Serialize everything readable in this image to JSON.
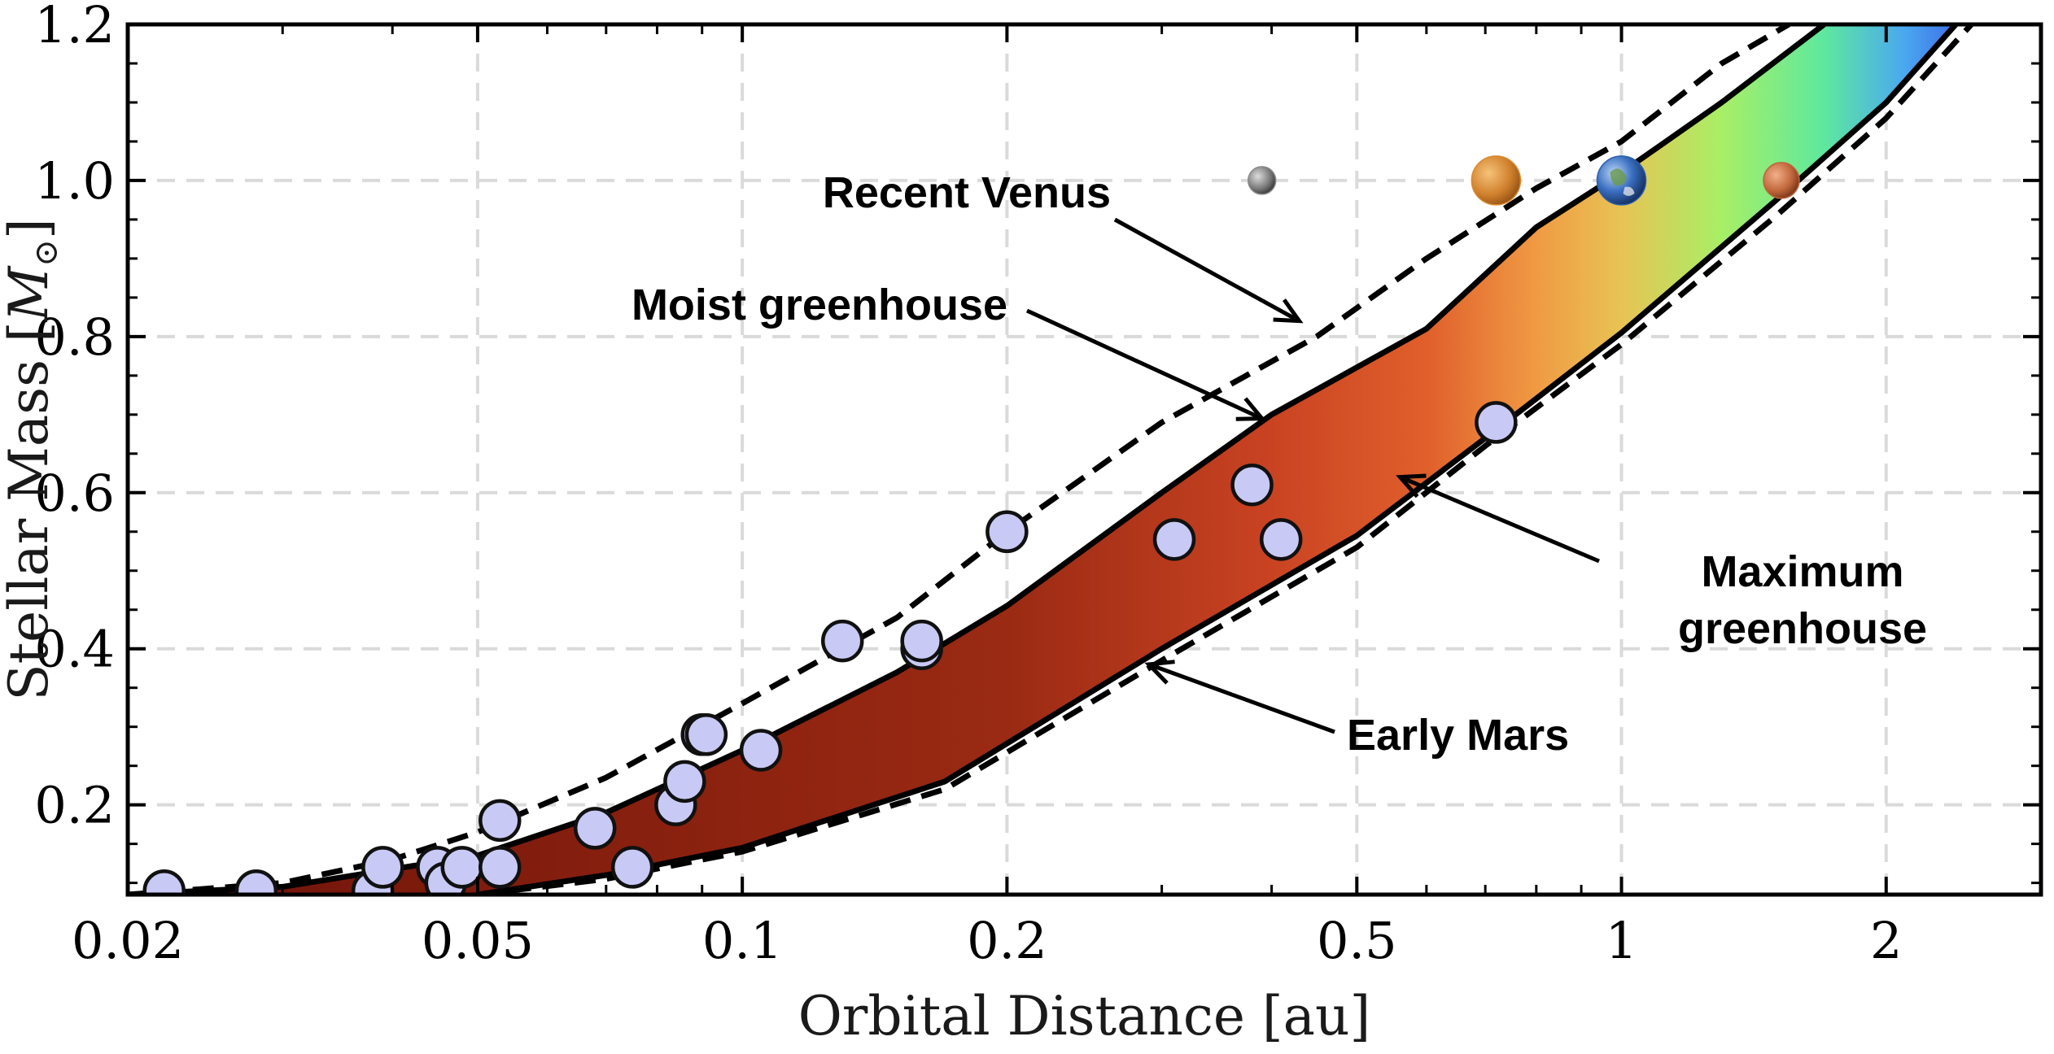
{
  "chart_data": {
    "type": "scatter",
    "title": "",
    "xlabel": "Orbital Distance [au]",
    "ylabel_text": "Stellar Mass [",
    "ylabel_symbol": "M",
    "ylabel_subscript": "⊙",
    "ylabel_close": "]",
    "xscale": "log",
    "xlim": [
      0.02,
      3.0
    ],
    "ylim": [
      0.085,
      1.2
    ],
    "grid": true,
    "x_ticks": [
      {
        "value": 0.02,
        "label": "0.02"
      },
      {
        "value": 0.05,
        "label": "0.05"
      },
      {
        "value": 0.1,
        "label": "0.1"
      },
      {
        "value": 0.2,
        "label": "0.2"
      },
      {
        "value": 0.5,
        "label": "0.5"
      },
      {
        "value": 1,
        "label": "1"
      },
      {
        "value": 2,
        "label": "2"
      }
    ],
    "y_ticks": [
      {
        "value": 0.2,
        "label": "0.2"
      },
      {
        "value": 0.4,
        "label": "0.4"
      },
      {
        "value": 0.6,
        "label": "0.6"
      },
      {
        "value": 0.8,
        "label": "0.8"
      },
      {
        "value": 1.0,
        "label": "1.0"
      },
      {
        "value": 1.2,
        "label": "1.2"
      }
    ],
    "boundaries": [
      {
        "name": "Recent Venus",
        "style": "dashed",
        "points": [
          [
            0.02,
            0.085
          ],
          [
            0.03,
            0.1
          ],
          [
            0.04,
            0.13
          ],
          [
            0.05,
            0.165
          ],
          [
            0.07,
            0.235
          ],
          [
            0.1,
            0.33
          ],
          [
            0.15,
            0.44
          ],
          [
            0.2,
            0.55
          ],
          [
            0.3,
            0.69
          ],
          [
            0.45,
            0.8
          ],
          [
            0.6,
            0.9
          ],
          [
            0.8,
            0.99
          ],
          [
            1.0,
            1.05
          ],
          [
            1.3,
            1.15
          ],
          [
            1.55,
            1.2
          ]
        ]
      },
      {
        "name": "Moist greenhouse",
        "style": "solid",
        "points": [
          [
            0.02,
            0.085
          ],
          [
            0.03,
            0.095
          ],
          [
            0.05,
            0.135
          ],
          [
            0.07,
            0.19
          ],
          [
            0.1,
            0.27
          ],
          [
            0.15,
            0.37
          ],
          [
            0.2,
            0.455
          ],
          [
            0.3,
            0.6
          ],
          [
            0.4,
            0.7
          ],
          [
            0.6,
            0.81
          ],
          [
            0.8,
            0.94
          ],
          [
            1.0,
            1.01
          ],
          [
            1.3,
            1.1
          ],
          [
            1.7,
            1.2
          ]
        ]
      },
      {
        "name": "Maximum greenhouse",
        "style": "solid",
        "points": [
          [
            0.05,
            0.085
          ],
          [
            0.07,
            0.11
          ],
          [
            0.1,
            0.145
          ],
          [
            0.17,
            0.23
          ],
          [
            0.3,
            0.4
          ],
          [
            0.5,
            0.545
          ],
          [
            0.7,
            0.67
          ],
          [
            1.0,
            0.805
          ],
          [
            1.5,
            0.975
          ],
          [
            2.0,
            1.1
          ],
          [
            2.4,
            1.2
          ]
        ]
      },
      {
        "name": "Early Mars",
        "style": "dashed",
        "points": [
          [
            0.05,
            0.085
          ],
          [
            0.07,
            0.105
          ],
          [
            0.1,
            0.14
          ],
          [
            0.17,
            0.22
          ],
          [
            0.3,
            0.385
          ],
          [
            0.5,
            0.53
          ],
          [
            0.7,
            0.66
          ],
          [
            1.0,
            0.79
          ],
          [
            1.5,
            0.955
          ],
          [
            2.0,
            1.08
          ],
          [
            2.5,
            1.2
          ]
        ]
      }
    ],
    "band_gradient_stops": [
      {
        "x": 0.02,
        "color": "#6e1209"
      },
      {
        "x": 0.2,
        "color": "#9a2a13"
      },
      {
        "x": 0.4,
        "color": "#c94322"
      },
      {
        "x": 0.6,
        "color": "#e05f2b"
      },
      {
        "x": 0.8,
        "color": "#f09a43"
      },
      {
        "x": 1.0,
        "color": "#e8c354"
      },
      {
        "x": 1.3,
        "color": "#a8ef66"
      },
      {
        "x": 1.7,
        "color": "#5ee89e"
      },
      {
        "x": 2.1,
        "color": "#4aa8f0"
      },
      {
        "x": 2.4,
        "color": "#3f6fe8"
      }
    ],
    "exoplanets": [
      {
        "x": 0.022,
        "y": 0.09
      },
      {
        "x": 0.028,
        "y": 0.09
      },
      {
        "x": 0.038,
        "y": 0.09
      },
      {
        "x": 0.039,
        "y": 0.12
      },
      {
        "x": 0.045,
        "y": 0.12
      },
      {
        "x": 0.046,
        "y": 0.1
      },
      {
        "x": 0.048,
        "y": 0.12
      },
      {
        "x": 0.053,
        "y": 0.12
      },
      {
        "x": 0.053,
        "y": 0.18
      },
      {
        "x": 0.068,
        "y": 0.17
      },
      {
        "x": 0.075,
        "y": 0.12
      },
      {
        "x": 0.084,
        "y": 0.2
      },
      {
        "x": 0.086,
        "y": 0.23
      },
      {
        "x": 0.09,
        "y": 0.29
      },
      {
        "x": 0.091,
        "y": 0.29
      },
      {
        "x": 0.105,
        "y": 0.27
      },
      {
        "x": 0.13,
        "y": 0.41
      },
      {
        "x": 0.16,
        "y": 0.4
      },
      {
        "x": 0.16,
        "y": 0.41
      },
      {
        "x": 0.2,
        "y": 0.55
      },
      {
        "x": 0.31,
        "y": 0.54
      },
      {
        "x": 0.38,
        "y": 0.61
      },
      {
        "x": 0.41,
        "y": 0.54
      },
      {
        "x": 0.72,
        "y": 0.69
      }
    ],
    "marker_fill": "#c9c9f5",
    "solar_system_planets": [
      {
        "name": "Mercury",
        "x": 0.39,
        "y": 1.0,
        "color": "#8a8a8a"
      },
      {
        "name": "Venus",
        "x": 0.72,
        "y": 1.0,
        "color": "#d98a2b"
      },
      {
        "name": "Earth",
        "x": 1.0,
        "y": 1.0,
        "color": "#2b5fb0"
      },
      {
        "name": "Mars",
        "x": 1.52,
        "y": 1.0,
        "color": "#c0663a"
      }
    ],
    "annotations": [
      {
        "id": "recent-venus",
        "lines": [
          "Recent Venus"
        ],
        "arrow_to": {
          "x": 0.43,
          "y": 0.82
        }
      },
      {
        "id": "moist-greenhouse",
        "lines": [
          "Moist greenhouse"
        ],
        "arrow_to": {
          "x": 0.39,
          "y": 0.695
        }
      },
      {
        "id": "maximum-greenhouse",
        "lines": [
          "Maximum",
          "greenhouse"
        ],
        "arrow_to": {
          "x": 0.56,
          "y": 0.62
        }
      },
      {
        "id": "early-mars",
        "lines": [
          "Early Mars"
        ],
        "arrow_to": {
          "x": 0.29,
          "y": 0.38
        }
      }
    ]
  }
}
